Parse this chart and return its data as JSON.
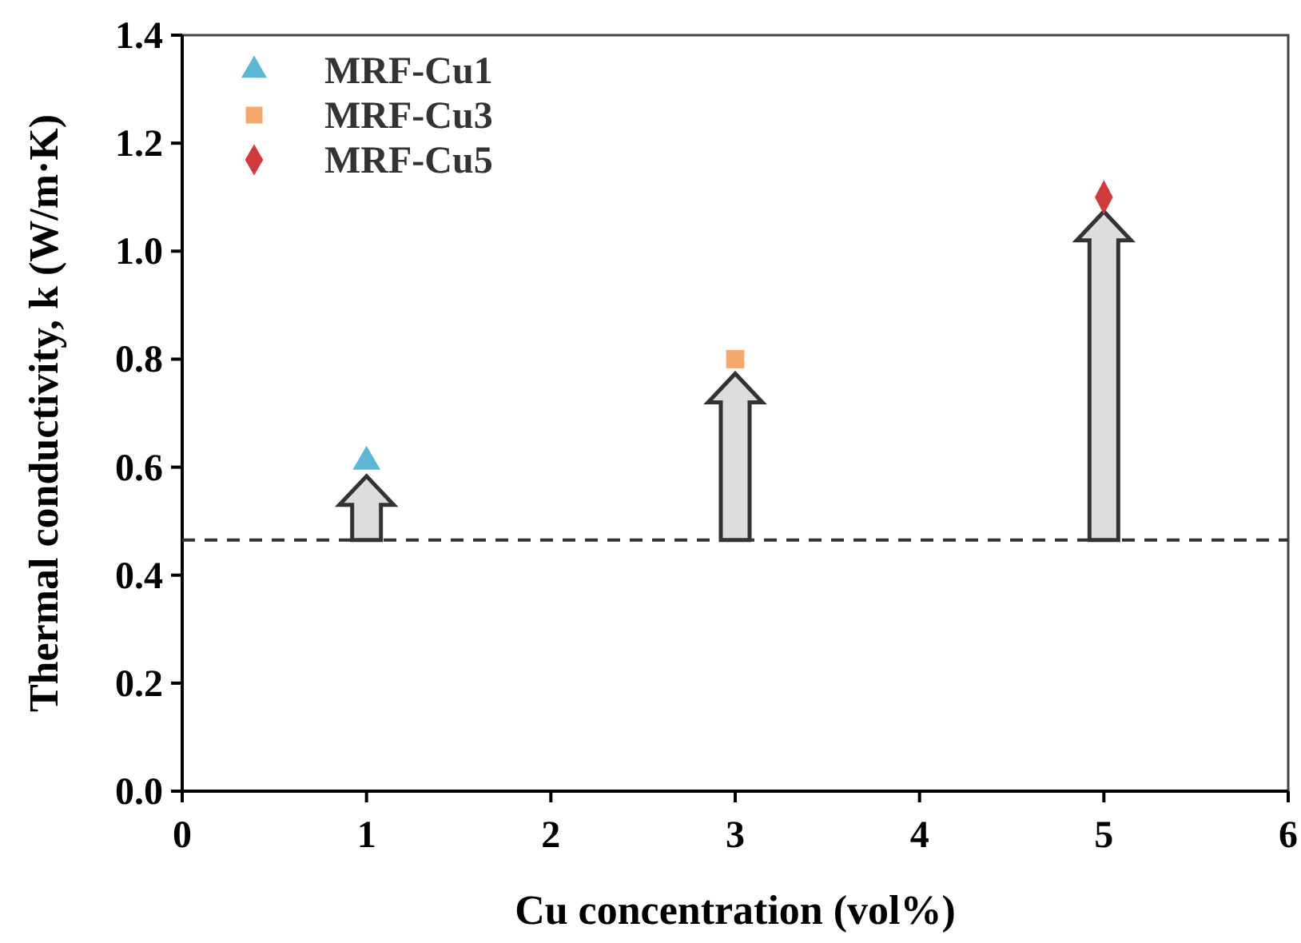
{
  "chart_data": {
    "type": "scatter",
    "xlabel": "Cu concentration (vol%)",
    "ylabel": "Thermal conductivity, k (W/m·K)",
    "xlim": [
      0,
      6
    ],
    "xticks": [
      0,
      1,
      2,
      3,
      4,
      5,
      6
    ],
    "ylim": [
      0,
      1.4
    ],
    "yticks": [
      {
        "value": 0,
        "label": "0.0"
      },
      0.2,
      0.4,
      0.6,
      0.8,
      {
        "value": 1,
        "label": "1.0"
      },
      1.2,
      1.4
    ],
    "series": [
      {
        "name": "MRF-Cu1",
        "color": "#5bb8d4",
        "marker": "triangle",
        "x": [
          1
        ],
        "values": [
          0.61
        ]
      },
      {
        "name": "MRF-Cu3",
        "color": "#f5a86b",
        "marker": "square",
        "x": [
          3
        ],
        "values": [
          0.8
        ]
      },
      {
        "name": "MRF-Cu5",
        "color": "#d03a3a",
        "marker": "diamond",
        "x": [
          5
        ],
        "values": [
          1.1
        ]
      }
    ],
    "ref_lines": [
      {
        "axis": "y",
        "value": 0.465,
        "color": "#333333",
        "line_style": "dashed"
      }
    ],
    "legend": "top left",
    "grid": false
  }
}
